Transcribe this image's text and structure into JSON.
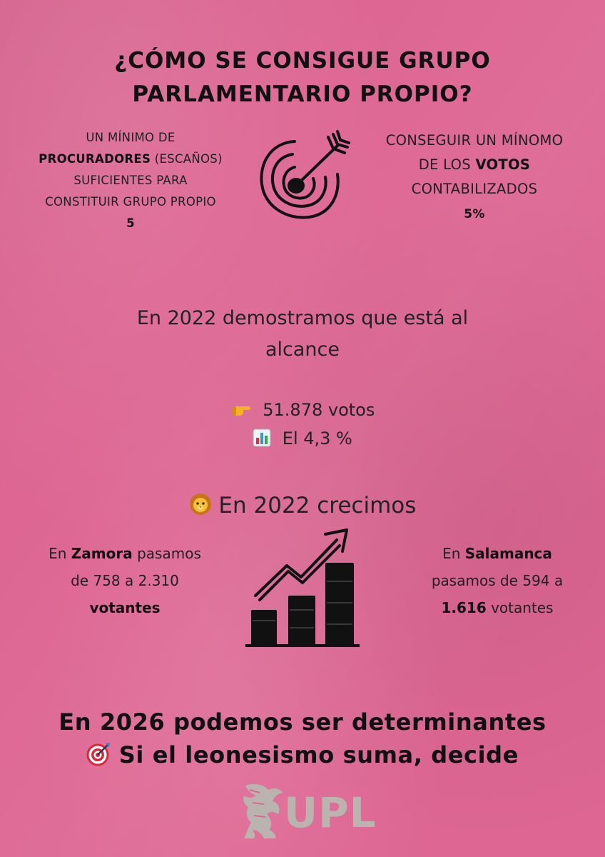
{
  "title": {
    "line1": "¿CÓMO SE CONSIGUE GRUPO",
    "line2": "PARLAMENTARIO PROPIO?"
  },
  "left_requirement": {
    "line1": "UN MÍNIMO DE",
    "line2_bold": "PROCURADORES",
    "line2_rest": " (ESCAÑOS)",
    "line3": "SUFICIENTES PARA",
    "line4": "CONSTITUIR GRUPO PROPIO",
    "value": "5"
  },
  "right_requirement": {
    "line1": "CONSEGUIR UN MÍNOMO",
    "line2_pre": "DE LOS ",
    "line2_bold": "VOTOS",
    "line3": "CONTABILIZADOS",
    "value": "5%"
  },
  "result_2022": {
    "line1": "En 2022 demostramos que está al",
    "line2": "alcance",
    "votes": "51.878 votos",
    "percent": "El 4,3 %",
    "votes_icon": "pointing-hand-icon",
    "percent_icon": "bar-chart-icon"
  },
  "growth": {
    "heading": "En 2022 crecimos",
    "heading_icon": "lion-icon",
    "zamora": {
      "pre": "En ",
      "city": "Zamora",
      "post": " pasamos",
      "line2": "de 758 a 2.310",
      "line3": "votantes"
    },
    "salamanca": {
      "pre": "En ",
      "city": "Salamanca",
      "line2": "pasamos de 594 a",
      "line3_bold": "1.616",
      "line3_rest": " votantes"
    }
  },
  "bottom": {
    "line1": "En 2026 podemos ser determinantes",
    "line2": "Si el leonesismo suma, decide",
    "line2_icon": "target-icon"
  },
  "logo": {
    "text": "UPL",
    "icon": "lion-rampant-logo-icon"
  },
  "colors": {
    "background": "#dd6692",
    "text": "#1a1a1a",
    "logo": "#b9b4b0"
  }
}
